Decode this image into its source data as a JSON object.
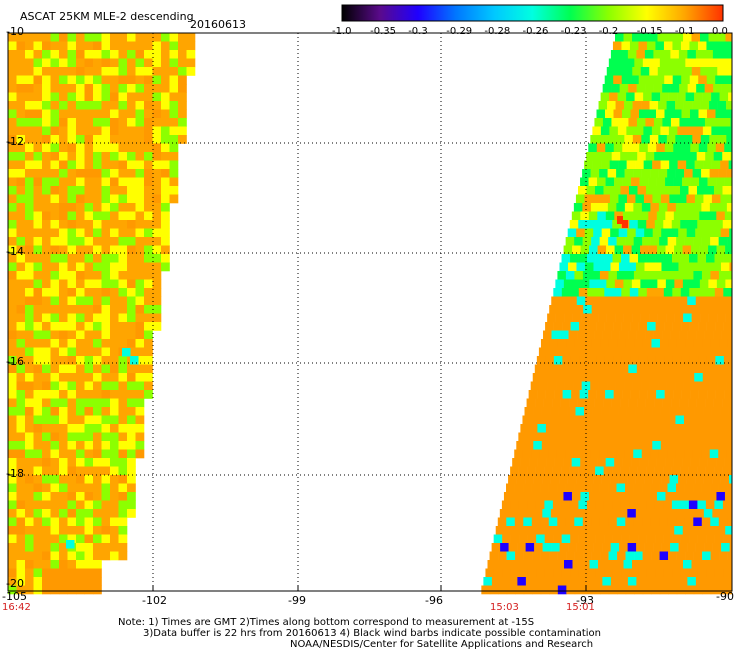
{
  "header": {
    "title": "ASCAT 25KM MLE-2 descending",
    "date": "20160613"
  },
  "colorbar": {
    "labels": [
      "-1.0",
      "-0.35",
      "-0.3",
      "-0.29",
      "-0.28",
      "-0.26",
      "-0.23",
      "-0.2",
      "-0.15",
      "-0.1",
      "0.0"
    ],
    "colors": [
      "#000000",
      "#5a0a8c",
      "#1f00ff",
      "#0078ff",
      "#00c8ff",
      "#00ffe0",
      "#00ff50",
      "#8cff00",
      "#ffff00",
      "#ffa500",
      "#ff3200"
    ]
  },
  "axes": {
    "lon_ticks": [
      "-105",
      "-102",
      "-99",
      "-96",
      "-93",
      "-90"
    ],
    "lat_ticks": [
      "-10",
      "-12",
      "-14",
      "-16",
      "-18",
      "-20"
    ],
    "lon_range": [
      -105,
      -90
    ],
    "lat_range": [
      -10,
      -20
    ]
  },
  "pass_times": [
    "16:42",
    "15:03",
    "15:01"
  ],
  "notes": {
    "line1": "Note: 1) Times are GMT 2)Times along bottom correspond to measurement at -15S",
    "line2": "3)Data buffer is 22 hrs from 20160613 4) Black wind barbs indicate possible contamination",
    "line3": "NOAA/NESDIS/Center for Satellite Applications and Research"
  },
  "palette": {
    "background": "#ffffff",
    "swath_fill": "#ff9900",
    "cyan": "#00ffe0",
    "blue": "#1f00ff",
    "green": "#00ff50",
    "lime": "#8cff00",
    "yellow": "#ffff00",
    "orange": "#ffa500",
    "red": "#ff3200",
    "time_label": "#d42020"
  }
}
